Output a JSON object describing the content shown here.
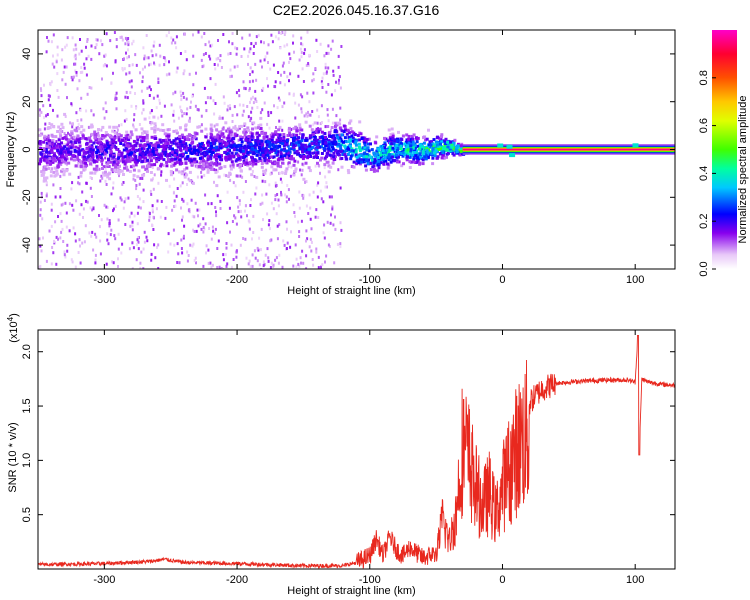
{
  "title": "C2E2.2026.045.16.37.G16",
  "chart_data": [
    {
      "type": "heatmap",
      "name": "spectrogram",
      "xlabel": "Height of straight line (km)",
      "ylabel": "Frequency (Hz)",
      "xlim": [
        -350,
        130
      ],
      "ylim": [
        -50,
        50
      ],
      "xticks": [
        -300,
        -200,
        -100,
        0,
        100
      ],
      "yticks": [
        -40,
        -20,
        0,
        20,
        40
      ],
      "description_series": {
        "ridge_center_frequency_hz": {
          "x": [
            -350,
            -300,
            -260,
            -200,
            -150,
            -120,
            -100,
            -80,
            -60,
            -45,
            -35,
            -30,
            0,
            130
          ],
          "y": [
            0,
            0,
            0,
            1,
            2,
            3,
            -2,
            1,
            0,
            2,
            1,
            0,
            0,
            0
          ]
        },
        "ridge_spread_hz": {
          "x": [
            -350,
            -120,
            -100,
            -50,
            -30,
            0,
            130
          ],
          "y": [
            12,
            10,
            8,
            6,
            2,
            1.5,
            1.5
          ]
        },
        "peak_normalized_amplitude": {
          "x": [
            -350,
            -130,
            -120,
            -60,
            -30,
            -10,
            5,
            130
          ],
          "y": [
            0.2,
            0.3,
            0.4,
            0.45,
            0.55,
            0.6,
            0.95,
            0.95
          ]
        }
      },
      "colorbar": {
        "label": "Normalized spectral amplitude",
        "range": [
          0,
          1
        ],
        "ticks": [
          0.0,
          0.2,
          0.4,
          0.6,
          0.8
        ],
        "tick_labels": [
          "0.0",
          "0.2",
          "0.4",
          "0.6",
          "0.8"
        ]
      }
    },
    {
      "type": "line",
      "name": "snr",
      "xlabel": "Height of straight line (km)",
      "ylabel": "SNR (10 * v/v)",
      "multiplier": "(x10",
      "multiplier_exp": "4",
      "xlim": [
        -350,
        130
      ],
      "ylim": [
        0,
        2.2
      ],
      "xticks": [
        -300,
        -200,
        -100,
        0,
        100
      ],
      "yticks": [
        0.5,
        1.0,
        1.5,
        2.0
      ],
      "ytick_labels": [
        "0.5",
        "1.0",
        "1.5",
        "2.0"
      ],
      "color": "#e8281e",
      "series": [
        {
          "name": "SNR envelope",
          "x": [
            -350,
            -300,
            -265,
            -255,
            -240,
            -200,
            -150,
            -120,
            -110,
            -100,
            -95,
            -90,
            -85,
            -80,
            -75,
            -70,
            -60,
            -50,
            -45,
            -40,
            -35,
            -30,
            -25,
            -20,
            -15,
            -10,
            -5,
            0,
            5,
            10,
            15,
            20,
            25,
            30,
            40,
            60,
            80,
            95,
            100,
            102,
            103,
            105,
            110,
            120,
            130
          ],
          "y": [
            0.04,
            0.05,
            0.07,
            0.09,
            0.06,
            0.05,
            0.03,
            0.03,
            0.06,
            0.12,
            0.28,
            0.12,
            0.3,
            0.18,
            0.12,
            0.2,
            0.1,
            0.15,
            0.55,
            0.3,
            0.6,
            1.4,
            1.2,
            0.9,
            0.7,
            0.85,
            0.6,
            0.9,
            1.1,
            1.3,
            1.45,
            1.52,
            1.6,
            1.66,
            1.71,
            1.73,
            1.74,
            1.74,
            1.72,
            2.15,
            1.05,
            1.75,
            1.72,
            1.7,
            1.69
          ]
        }
      ]
    }
  ]
}
